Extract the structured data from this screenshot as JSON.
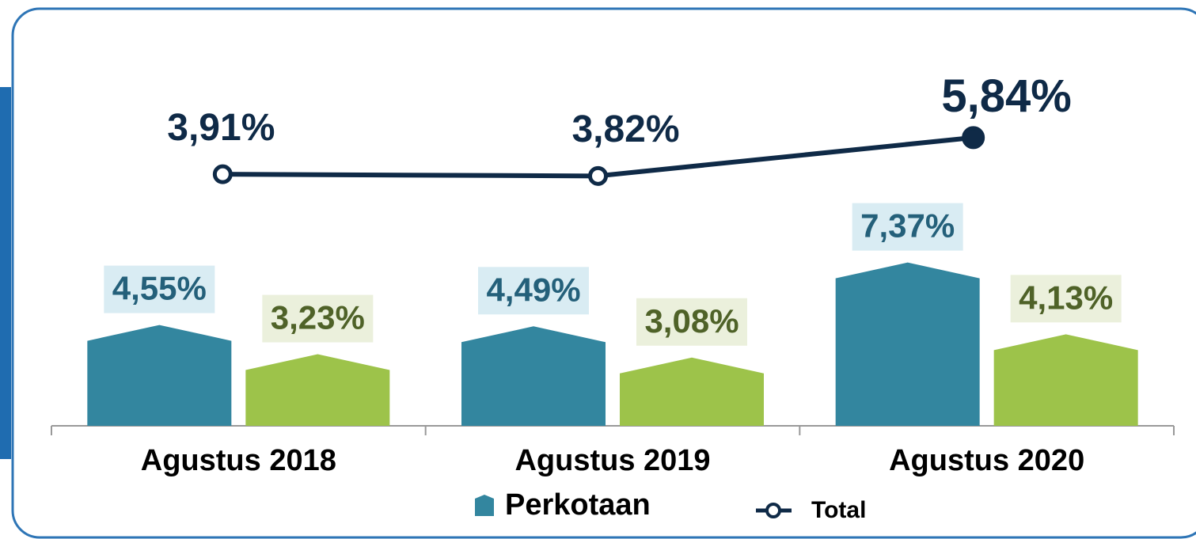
{
  "chart_data": {
    "type": "bar",
    "categories": [
      "Agustus 2018",
      "Agustus 2019",
      "Agustus 2020"
    ],
    "series": [
      {
        "name": "Perkotaan",
        "color": "#33869f",
        "label_bg": "#d9ecf3",
        "label_color": "#24607a",
        "values": [
          4.55,
          4.49,
          7.37
        ],
        "value_labels": [
          "4,55%",
          "4,49%",
          "7,37%"
        ]
      },
      {
        "color": "#9dc34a",
        "label_bg": "#ebf0dc",
        "label_color": "#4f6228",
        "values": [
          3.23,
          3.08,
          4.13
        ],
        "value_labels": [
          "3,23%",
          "3,08%",
          "4,13%"
        ]
      },
      {
        "name": "Total",
        "type": "line",
        "color": "#0f2a47",
        "values": [
          3.91,
          3.82,
          5.84
        ],
        "value_labels": [
          "3,91%",
          "3,82%",
          "5,84%"
        ]
      }
    ]
  }
}
